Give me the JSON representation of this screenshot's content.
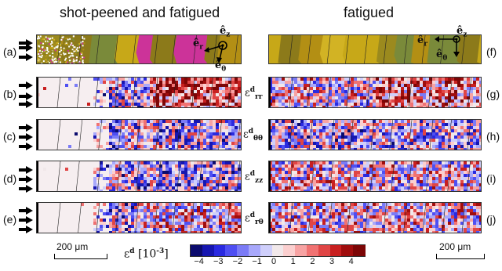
{
  "headers": {
    "left": "shot-peened and fatigued",
    "right": "fatigued"
  },
  "left_labels": [
    "(a)",
    "(b)",
    "(c)",
    "(d)",
    "(e)"
  ],
  "right_labels": [
    "(f)",
    "(g)",
    "(h)",
    "(i)",
    "(j)"
  ],
  "components": [
    {
      "base": "ε",
      "sup": "d",
      "sub": "rr"
    },
    {
      "base": "ε",
      "sup": "d",
      "sub": "θθ"
    },
    {
      "base": "ε",
      "sup": "d",
      "sub": "zz"
    },
    {
      "base": "ε",
      "sup": "d",
      "sub": "rθ"
    }
  ],
  "basis_vectors": {
    "z": "ê",
    "z_sub": "z",
    "r": "ê",
    "r_sub": "r",
    "theta": "ê",
    "theta_sub": "θ"
  },
  "scale_bar_left": "200 μm",
  "scale_bar_right": "200 μm",
  "colorbar": {
    "label": "εd [10-3]",
    "label_base": "ε",
    "label_sup": "d",
    "label_unit": "[10",
    "label_exp": "-3",
    "label_close": "]",
    "ticks": [
      "−4",
      "−3",
      "−2",
      "−1",
      "0",
      "1",
      "2",
      "3",
      "4"
    ],
    "colors": [
      "#0b0b6e",
      "#1616b0",
      "#2a2ae0",
      "#4f4ff2",
      "#7b7bf6",
      "#a8a8fb",
      "#cfcffb",
      "#f1e8ea",
      "#fbcfcf",
      "#f7a3a3",
      "#f07272",
      "#e04545",
      "#c82020",
      "#a00d0d",
      "#7c0606"
    ]
  },
  "colors": {
    "grain_olive": "#9b8a1e",
    "grain_gold": "#c7a818",
    "grain_magenta": "#cc3399",
    "grain_green": "#7a8a3a"
  }
}
